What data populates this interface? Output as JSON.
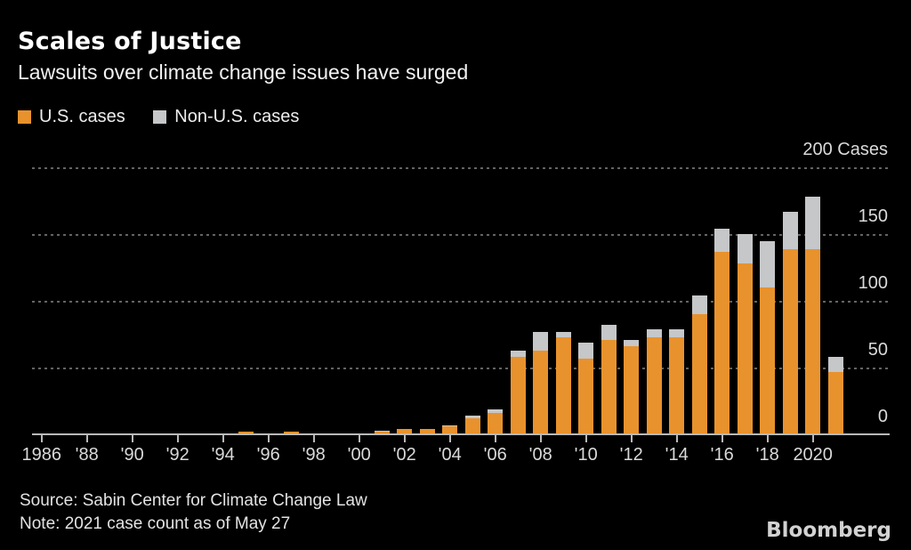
{
  "header": {
    "title": "Scales of Justice",
    "subtitle": "Lawsuits over climate change issues have surged"
  },
  "legend": {
    "items": [
      {
        "label": "U.S. cases",
        "color": "#E8922D"
      },
      {
        "label": "Non-U.S. cases",
        "color": "#C5C7C9"
      }
    ]
  },
  "chart_data": {
    "type": "bar",
    "stacked": true,
    "title": "Scales of Justice",
    "subtitle": "Lawsuits over climate change issues have surged",
    "ylabel": "Cases",
    "ylim": [
      0,
      200
    ],
    "grid": "horizontal-dashed",
    "legend_position": "top-left",
    "background": "#000000",
    "x": [
      1986,
      1987,
      1988,
      1989,
      1990,
      1991,
      1992,
      1993,
      1994,
      1995,
      1996,
      1997,
      1998,
      1999,
      2000,
      2001,
      2002,
      2003,
      2004,
      2005,
      2006,
      2007,
      2008,
      2009,
      2010,
      2011,
      2012,
      2013,
      2014,
      2015,
      2016,
      2017,
      2018,
      2019,
      2020,
      2021
    ],
    "series": [
      {
        "name": "U.S. cases",
        "color": "#E8922D",
        "values": [
          1,
          0,
          0,
          1,
          0,
          0,
          1,
          0,
          0,
          2,
          0,
          2,
          0,
          1,
          0,
          2,
          4,
          4,
          6,
          12,
          16,
          58,
          63,
          73,
          57,
          71,
          66,
          73,
          73,
          90,
          137,
          128,
          110,
          139,
          139,
          47
        ]
      },
      {
        "name": "Non-U.S. cases",
        "color": "#C5C7C9",
        "values": [
          0,
          0,
          0,
          0,
          0,
          0,
          0,
          0,
          1,
          0,
          0,
          0,
          0,
          0,
          0,
          1,
          0,
          0,
          1,
          2,
          3,
          5,
          14,
          4,
          12,
          11,
          5,
          6,
          6,
          14,
          17,
          22,
          35,
          28,
          39,
          11
        ]
      }
    ],
    "y_axis": [
      {
        "value": 200,
        "label": "200 Cases"
      },
      {
        "value": 150,
        "label": "150"
      },
      {
        "value": 100,
        "label": "100"
      },
      {
        "value": 50,
        "label": "50"
      },
      {
        "value": 0,
        "label": "0"
      }
    ],
    "x_ticks": [
      {
        "index": 0,
        "label": "1986"
      },
      {
        "index": 2,
        "label": "'88"
      },
      {
        "index": 4,
        "label": "'90"
      },
      {
        "index": 6,
        "label": "'92"
      },
      {
        "index": 8,
        "label": "'94"
      },
      {
        "index": 10,
        "label": "'96"
      },
      {
        "index": 12,
        "label": "'98"
      },
      {
        "index": 14,
        "label": "'00"
      },
      {
        "index": 16,
        "label": "'02"
      },
      {
        "index": 18,
        "label": "'04"
      },
      {
        "index": 20,
        "label": "'06"
      },
      {
        "index": 22,
        "label": "'08"
      },
      {
        "index": 24,
        "label": "'10"
      },
      {
        "index": 26,
        "label": "'12"
      },
      {
        "index": 28,
        "label": "'14"
      },
      {
        "index": 30,
        "label": "'16"
      },
      {
        "index": 32,
        "label": "'18"
      },
      {
        "index": 34,
        "label": "2020"
      }
    ]
  },
  "footer": {
    "source": "Source: Sabin Center for Climate Change Law",
    "note": "Note: 2021 case count as of May 27",
    "brand": "Bloomberg"
  }
}
